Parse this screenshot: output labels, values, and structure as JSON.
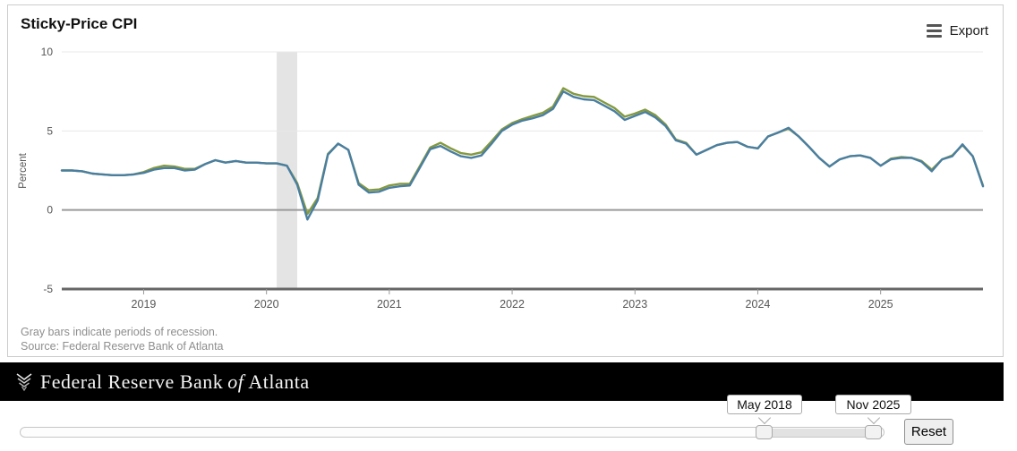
{
  "header": {
    "title": "Sticky-Price CPI",
    "export_label": "Export"
  },
  "footnotes": {
    "recession_note": "Gray bars indicate periods of recession.",
    "source": "Source: Federal Reserve Bank of Atlanta"
  },
  "footer": {
    "text_main": "Federal Reserve Bank",
    "text_of": "of",
    "text_city": "Atlanta"
  },
  "range_slider": {
    "start_label": "May 2018",
    "end_label": "Nov 2025",
    "reset_label": "Reset"
  },
  "colors": {
    "line_olive": "#84993f",
    "line_blue": "#4a7ea1",
    "recession_band": "#e4e4e4",
    "footer_bg": "#000000"
  },
  "chart_data": {
    "type": "line",
    "title": "Sticky-Price CPI",
    "xlabel": "",
    "ylabel": "Percent",
    "ylim": [
      -5,
      10
    ],
    "yticks": [
      10,
      5,
      0,
      -5
    ],
    "grid": "horizontal",
    "legend": "none",
    "x_monthly_from": "May 2018",
    "x_monthly_to": "Nov 2025",
    "x_tick_labels": [
      "2019",
      "2020",
      "2021",
      "2022",
      "2023",
      "2024",
      "2025"
    ],
    "recession_band": {
      "start_index": 21,
      "end_index": 23,
      "period": "Feb 2020 - Apr 2020"
    },
    "series": [
      {
        "name": "olive-line",
        "color": "#84993f",
        "values": [
          2.5,
          2.5,
          2.45,
          2.3,
          2.25,
          2.2,
          2.2,
          2.25,
          2.4,
          2.65,
          2.8,
          2.75,
          2.6,
          2.6,
          2.9,
          3.15,
          3.0,
          3.1,
          3.0,
          3.0,
          2.95,
          2.95,
          2.8,
          1.7,
          -0.25,
          0.75,
          3.55,
          4.2,
          3.8,
          1.7,
          1.25,
          1.3,
          1.55,
          1.65,
          1.65,
          2.8,
          3.95,
          4.25,
          3.9,
          3.6,
          3.5,
          3.65,
          4.35,
          5.1,
          5.5,
          5.75,
          5.95,
          6.15,
          6.55,
          7.7,
          7.35,
          7.2,
          7.15,
          6.8,
          6.45,
          5.9,
          6.1,
          6.35,
          6.0,
          5.4,
          4.45,
          4.25,
          3.5,
          3.8,
          4.1,
          4.25,
          4.3,
          4.0,
          3.9,
          4.65,
          4.9,
          5.15,
          4.65,
          4.0,
          3.3,
          2.75,
          3.2,
          3.4,
          3.45,
          3.3,
          2.8,
          3.25,
          3.35,
          3.3,
          3.1,
          2.55,
          3.2,
          3.45,
          4.1,
          3.4,
          1.55
        ]
      },
      {
        "name": "blue-line",
        "color": "#4a7ea1",
        "values": [
          2.5,
          2.5,
          2.45,
          2.3,
          2.25,
          2.2,
          2.2,
          2.25,
          2.35,
          2.55,
          2.65,
          2.65,
          2.5,
          2.55,
          2.9,
          3.15,
          3.0,
          3.1,
          3.0,
          3.0,
          2.95,
          2.95,
          2.8,
          1.6,
          -0.6,
          0.6,
          3.5,
          4.2,
          3.8,
          1.6,
          1.1,
          1.15,
          1.4,
          1.5,
          1.55,
          2.7,
          3.85,
          4.05,
          3.7,
          3.4,
          3.3,
          3.45,
          4.2,
          5.0,
          5.4,
          5.65,
          5.8,
          6.0,
          6.4,
          7.5,
          7.15,
          7.0,
          6.95,
          6.6,
          6.25,
          5.7,
          5.95,
          6.2,
          5.85,
          5.3,
          4.4,
          4.2,
          3.5,
          3.8,
          4.1,
          4.25,
          4.3,
          4.0,
          3.9,
          4.65,
          4.9,
          5.2,
          4.65,
          4.0,
          3.3,
          2.75,
          3.2,
          3.4,
          3.45,
          3.3,
          2.8,
          3.2,
          3.3,
          3.3,
          3.05,
          2.45,
          3.2,
          3.4,
          4.15,
          3.4,
          1.5
        ]
      }
    ]
  }
}
